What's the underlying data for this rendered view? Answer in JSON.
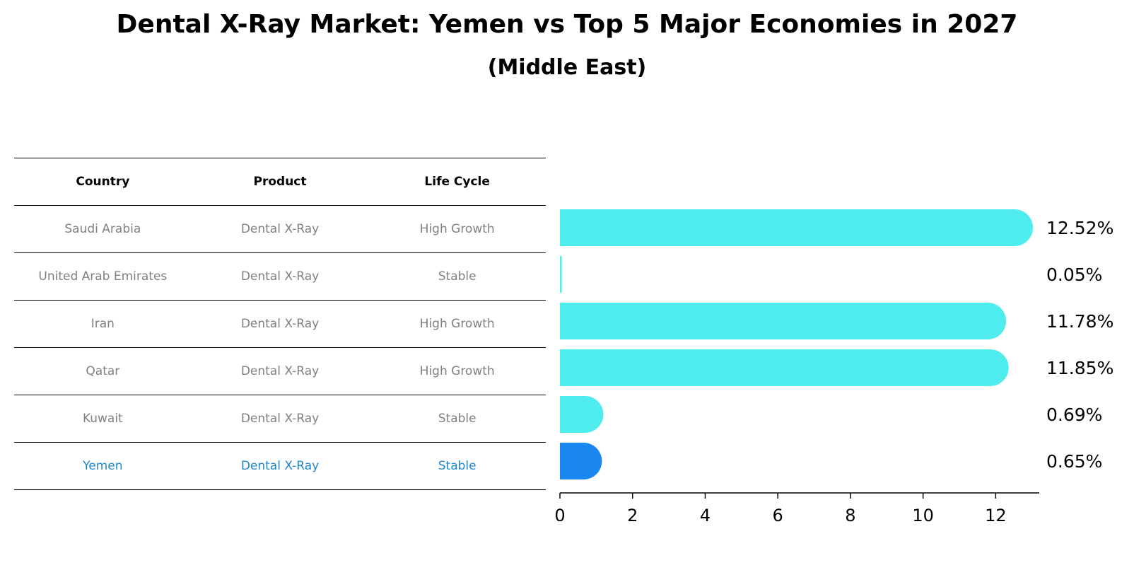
{
  "title": "Dental X-Ray Market: Yemen vs Top 5 Major Economies in 2027",
  "subtitle": "(Middle East)",
  "table": {
    "headers": [
      "Country",
      "Product",
      "Life Cycle"
    ],
    "rows": [
      [
        "Saudi Arabia",
        "Dental X-Ray",
        "High Growth"
      ],
      [
        "United Arab Emirates",
        "Dental X-Ray",
        "Stable"
      ],
      [
        "Iran",
        "Dental X-Ray",
        "High Growth"
      ],
      [
        "Qatar",
        "Dental X-Ray",
        "High Growth"
      ],
      [
        "Kuwait",
        "Dental X-Ray",
        "Stable"
      ],
      [
        "Yemen",
        "Dental X-Ray",
        "Stable"
      ]
    ]
  },
  "colors": {
    "bar": "#4eecec",
    "highlight_bar": "#1a87f0",
    "highlight_text": "#1f86c9"
  },
  "chart_data": {
    "type": "bar",
    "orientation": "horizontal",
    "title": "Dental X-Ray Market: Yemen vs Top 5 Major Economies in 2027",
    "subtitle": "(Middle East)",
    "categories": [
      "Saudi Arabia",
      "United Arab Emirates",
      "Iran",
      "Qatar",
      "Kuwait",
      "Yemen"
    ],
    "values": [
      12.52,
      0.05,
      11.78,
      11.85,
      0.69,
      0.65
    ],
    "value_labels": [
      "12.52%",
      "0.05%",
      "11.78%",
      "11.85%",
      "0.69%",
      "0.65%"
    ],
    "highlight": "Yemen",
    "xlim": [
      0,
      13.2
    ],
    "xticks": [
      0,
      2,
      4,
      6,
      8,
      10,
      12
    ],
    "xlabel": "",
    "ylabel": "",
    "grid": false
  }
}
